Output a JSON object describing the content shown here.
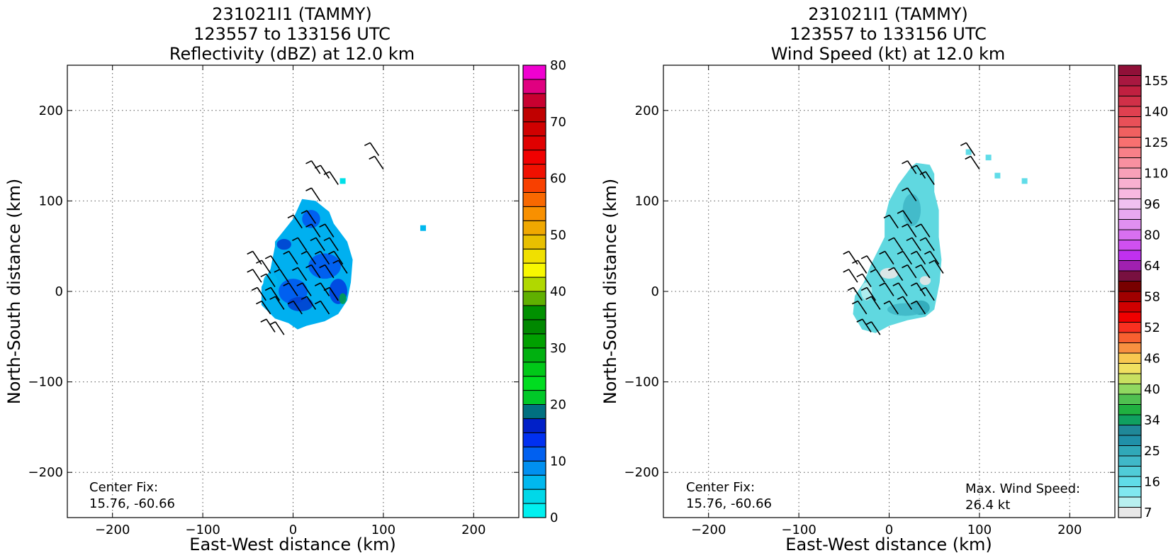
{
  "chart_data": [
    {
      "type": "heatmap",
      "title": [
        "231021I1 (TAMMY)",
        "123557 to 133156 UTC",
        "Reflectivity (dBZ) at 12.0 km"
      ],
      "xlabel": "East-West distance (km)",
      "ylabel": "North-South distance (km)",
      "xlim": [
        -250,
        250
      ],
      "ylim": [
        -250,
        250
      ],
      "xticks": [
        -200,
        -100,
        0,
        100,
        200
      ],
      "yticks": [
        -200,
        -100,
        0,
        100,
        200
      ],
      "xtick_labels": [
        "−200",
        "−100",
        "0",
        "100",
        "200"
      ],
      "ytick_labels": [
        "−200",
        "−100",
        "0",
        "100",
        "200"
      ],
      "grid": true,
      "annotations": [
        {
          "text": [
            "Center Fix:",
            "15.76, -60.66"
          ],
          "position": "bottom-left"
        }
      ],
      "colorbar": {
        "min": 0,
        "max": 80,
        "step": 2.5,
        "tick_values": [
          0,
          10,
          20,
          30,
          40,
          50,
          60,
          70,
          80
        ],
        "tick_labels": [
          "0",
          "10",
          "20",
          "30",
          "40",
          "50",
          "60",
          "70",
          "80"
        ],
        "colors": [
          "#00f0f0",
          "#00d8e8",
          "#00b8ee",
          "#0090f0",
          "#0060f0",
          "#0030f0",
          "#0020c8",
          "#007080",
          "#00c828",
          "#00dc20",
          "#00c818",
          "#00b010",
          "#00a000",
          "#008800",
          "#009000",
          "#60b000",
          "#b0d800",
          "#f8f800",
          "#f0e000",
          "#e8c000",
          "#f0a800",
          "#f89000",
          "#f86800",
          "#f84000",
          "#f01000",
          "#f00000",
          "#e00000",
          "#d00000",
          "#c00000",
          "#c80030",
          "#e00080",
          "#f000d0",
          "#e000f0",
          "#c040e0",
          "#a040d0",
          "#7840a0",
          "#402050",
          "#000000"
        ]
      },
      "storm_region": {
        "outline_km": [
          [
            -20,
            55
          ],
          [
            0,
            80
          ],
          [
            10,
            102
          ],
          [
            25,
            100
          ],
          [
            40,
            88
          ],
          [
            45,
            75
          ],
          [
            60,
            55
          ],
          [
            66,
            35
          ],
          [
            64,
            10
          ],
          [
            60,
            -10
          ],
          [
            50,
            -25
          ],
          [
            35,
            -33
          ],
          [
            15,
            -38
          ],
          [
            5,
            -42
          ],
          [
            -5,
            -35
          ],
          [
            -20,
            -30
          ],
          [
            -35,
            -15
          ],
          [
            -35,
            5
          ],
          [
            -25,
            25
          ],
          [
            -20,
            50
          ]
        ],
        "patches": [
          {
            "x": 0,
            "y": 0,
            "rx": 16,
            "ry": 14,
            "color": "#0058f0"
          },
          {
            "x": 35,
            "y": 28,
            "rx": 18,
            "ry": 14,
            "color": "#0058f0"
          },
          {
            "x": 50,
            "y": 0,
            "rx": 10,
            "ry": 14,
            "color": "#0040e0"
          },
          {
            "x": 8,
            "y": -14,
            "rx": 14,
            "ry": 8,
            "color": "#0040d0"
          },
          {
            "x": 20,
            "y": 80,
            "rx": 10,
            "ry": 10,
            "color": "#0058f0"
          },
          {
            "x": -10,
            "y": 52,
            "rx": 8,
            "ry": 6,
            "color": "#0040d0"
          },
          {
            "x": -25,
            "y": 10,
            "rx": 8,
            "ry": 10,
            "color": "#00b8ee"
          },
          {
            "x": 55,
            "y": -8,
            "rx": 4,
            "ry": 6,
            "color": "#00a050"
          }
        ],
        "specks": [
          {
            "x": 144,
            "y": 70,
            "color": "#00b8ee"
          },
          {
            "x": 55,
            "y": 122,
            "color": "#00e0e8"
          }
        ]
      },
      "wind_barbs_shown": true
    },
    {
      "type": "heatmap",
      "title": [
        "231021I1 (TAMMY)",
        "123557 to 133156 UTC",
        "Wind Speed (kt) at 12.0 km"
      ],
      "xlabel": "East-West distance (km)",
      "ylabel": "North-South distance (km)",
      "xlim": [
        -250,
        250
      ],
      "ylim": [
        -250,
        250
      ],
      "xticks": [
        -200,
        -100,
        0,
        100,
        200
      ],
      "yticks": [
        -200,
        -100,
        0,
        100,
        200
      ],
      "xtick_labels": [
        "−200",
        "−100",
        "0",
        "100",
        "200"
      ],
      "ytick_labels": [
        "−200",
        "−100",
        "0",
        "100",
        "200"
      ],
      "grid": true,
      "annotations": [
        {
          "text": [
            "Center Fix:",
            "15.76, -60.66"
          ],
          "position": "bottom-left"
        },
        {
          "text": [
            "Max. Wind Speed:",
            "26.4 kt"
          ],
          "position": "bottom-right"
        }
      ],
      "colorbar": {
        "levels": 40,
        "tick_labels": [
          "7",
          "16",
          "25",
          "34",
          "40",
          "46",
          "52",
          "58",
          "64",
          "80",
          "96",
          "110",
          "125",
          "140",
          "155"
        ],
        "tick_indices": [
          0.5,
          3.5,
          6.5,
          9.5,
          12.5,
          15.5,
          18.5,
          21.5,
          24.5,
          27.5,
          30.5,
          33.5,
          36.5,
          39.5,
          42.5
        ],
        "colors": [
          "#e8e8e8",
          "#b8f0f0",
          "#80e8f0",
          "#60dce8",
          "#50ccd8",
          "#40b8c8",
          "#30a8b8",
          "#2090a8",
          "#208898",
          "#10a060",
          "#20b040",
          "#50c050",
          "#90d860",
          "#c8e060",
          "#f0e060",
          "#f8c850",
          "#f89040",
          "#f86030",
          "#f83020",
          "#f00000",
          "#d00000",
          "#a00000",
          "#780000",
          "#781040",
          "#a020b0",
          "#c030f0",
          "#d050f0",
          "#d870f0",
          "#e090f0",
          "#e8a8f0",
          "#f0c0f0",
          "#f8b8e0",
          "#f8b0d0",
          "#f8a0b8",
          "#f890a0",
          "#f88088",
          "#f87070",
          "#f06060",
          "#e85058",
          "#e04050",
          "#d03048",
          "#c02040",
          "#a81840",
          "#901038"
        ]
      },
      "storm_region": {
        "outline_km": [
          [
            30,
            142
          ],
          [
            45,
            140
          ],
          [
            50,
            130
          ],
          [
            50,
            110
          ],
          [
            55,
            90
          ],
          [
            55,
            60
          ],
          [
            58,
            35
          ],
          [
            56,
            10
          ],
          [
            50,
            -20
          ],
          [
            40,
            -28
          ],
          [
            20,
            -32
          ],
          [
            0,
            -38
          ],
          [
            -15,
            -46
          ],
          [
            -30,
            -42
          ],
          [
            -40,
            -25
          ],
          [
            -38,
            -5
          ],
          [
            -28,
            10
          ],
          [
            -20,
            30
          ],
          [
            -5,
            60
          ],
          [
            -5,
            80
          ],
          [
            0,
            100
          ],
          [
            10,
            118
          ],
          [
            25,
            138
          ]
        ],
        "patches": [
          {
            "x": 35,
            "y": -18,
            "rx": 10,
            "ry": 8,
            "color": "#30a8b8"
          },
          {
            "x": 18,
            "y": -20,
            "rx": 20,
            "ry": 7,
            "color": "#40b8c8"
          },
          {
            "x": 25,
            "y": 90,
            "rx": 10,
            "ry": 18,
            "color": "#40b8c8"
          },
          {
            "x": 0,
            "y": 20,
            "rx": 10,
            "ry": 6,
            "color": "#e8e8e8"
          },
          {
            "x": 40,
            "y": 12,
            "rx": 6,
            "ry": 5,
            "color": "#e8e8e8"
          },
          {
            "x": -25,
            "y": 0,
            "rx": 6,
            "ry": 10,
            "color": "#b8f0f0"
          }
        ],
        "specks": [
          {
            "x": 88,
            "y": 154,
            "color": "#60dce8"
          },
          {
            "x": 110,
            "y": 148,
            "color": "#60dce8"
          },
          {
            "x": 120,
            "y": 128,
            "color": "#60dce8"
          },
          {
            "x": 150,
            "y": 122,
            "color": "#60dce8"
          }
        ]
      },
      "wind_barbs_shown": true
    }
  ]
}
